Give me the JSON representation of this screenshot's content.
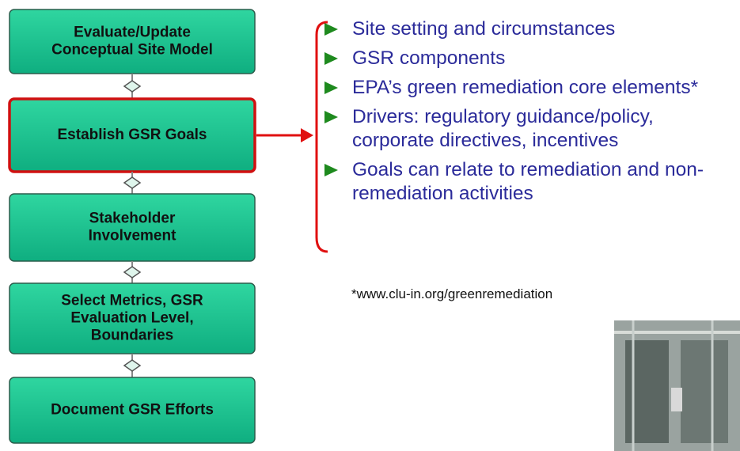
{
  "steps": [
    {
      "lines": [
        "Evaluate/Update",
        "Conceptual Site Model"
      ]
    },
    {
      "lines": [
        "Establish GSR Goals"
      ]
    },
    {
      "lines": [
        "Stakeholder",
        "Involvement"
      ]
    },
    {
      "lines": [
        "Select Metrics, GSR",
        "Evaluation Level,",
        "Boundaries"
      ]
    },
    {
      "lines": [
        "Document GSR Efforts"
      ]
    }
  ],
  "bullets": [
    "Site setting and circumstances",
    "GSR components",
    "EPA’s green remediation core elements*",
    "Drivers: regulatory guidance/policy, corporate directives, incentives",
    "Goals can relate to remediation and non-remediation activities"
  ],
  "footnote": "*www.clu-in.org/greenremediation"
}
